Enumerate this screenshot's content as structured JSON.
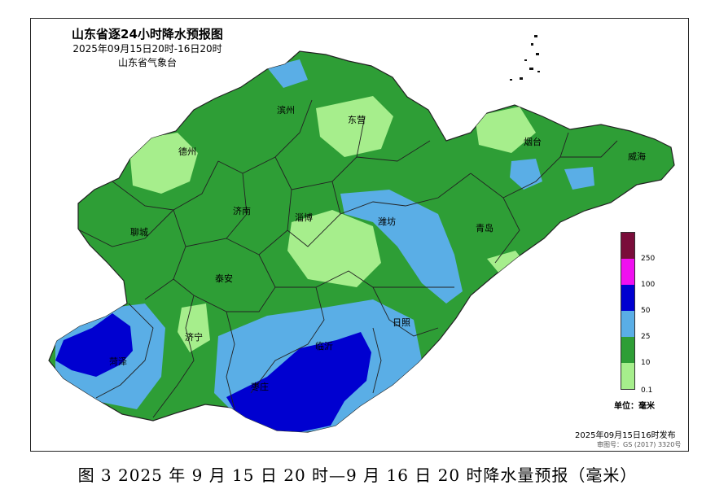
{
  "map": {
    "title": "山东省逐24小时降水预报图",
    "period": "2025年09月15日20时-16日20时",
    "issuer": "山东省气象台",
    "cities": [
      {
        "name": "德州"
      },
      {
        "name": "滨州"
      },
      {
        "name": "东营"
      },
      {
        "name": "烟台"
      },
      {
        "name": "威海"
      },
      {
        "name": "聊城"
      },
      {
        "name": "济南"
      },
      {
        "name": "淄博"
      },
      {
        "name": "潍坊"
      },
      {
        "name": "青岛"
      },
      {
        "name": "泰安"
      },
      {
        "name": "济宁"
      },
      {
        "name": "日照"
      },
      {
        "name": "临沂"
      },
      {
        "name": "菏泽"
      },
      {
        "name": "枣庄"
      }
    ],
    "legend": {
      "unit": "单位：毫米",
      "levels": [
        {
          "label": "250",
          "color": "#7a0d3a"
        },
        {
          "label": "100",
          "color": "#f00ff0"
        },
        {
          "label": "50",
          "color": "#0000d0"
        },
        {
          "label": "25",
          "color": "#5aaee6"
        },
        {
          "label": "10",
          "color": "#2e9e36"
        },
        {
          "label": "0.1",
          "color": "#a6ee8c"
        }
      ]
    },
    "published": "2025年09月15日16时发布",
    "approval": "审图号：GS (2017) 3320号"
  },
  "caption": "图 3 2025 年 9 月 15 日 20 时—9 月 16 日 20 时降水量预报（毫米）"
}
